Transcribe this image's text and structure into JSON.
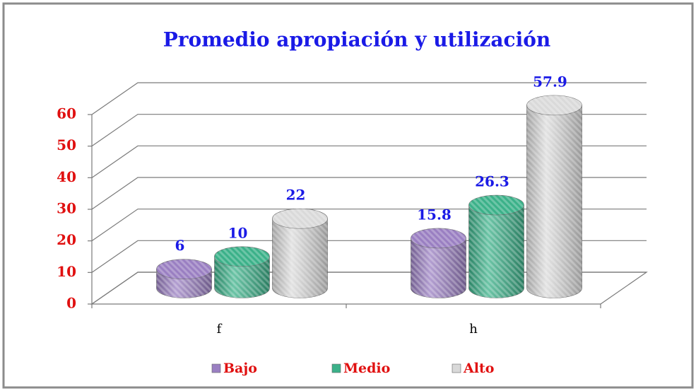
{
  "chart_data": {
    "type": "bar",
    "title": "Promedio apropiación y utilización",
    "categories": [
      "f",
      "h"
    ],
    "series": [
      {
        "name": "Bajo",
        "color": "#9a7fc2",
        "values": [
          6,
          15.8
        ]
      },
      {
        "name": "Medio",
        "color": "#3bb189",
        "values": [
          10,
          26.3
        ]
      },
      {
        "name": "Alto",
        "color": "#d9d9d9",
        "values": [
          22,
          57.9
        ]
      }
    ],
    "ylim": [
      0,
      60
    ],
    "yticks": [
      0,
      10,
      20,
      30,
      40,
      50,
      60
    ],
    "grid": true
  }
}
